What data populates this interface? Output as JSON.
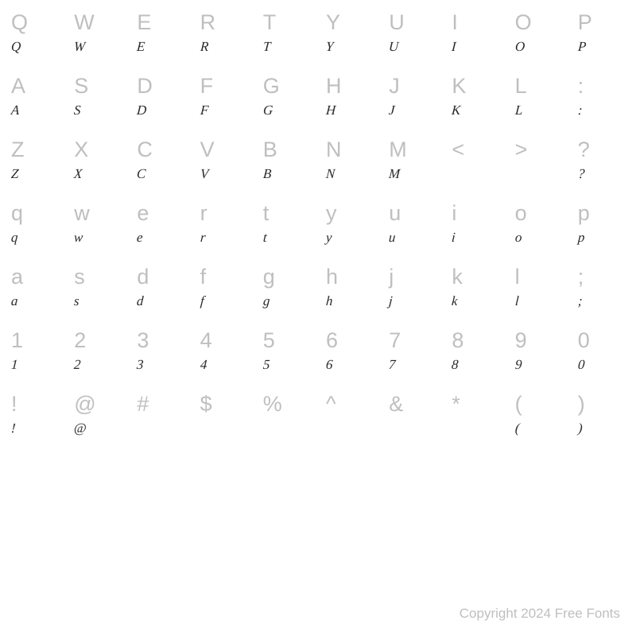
{
  "grid": {
    "rows": [
      {
        "ref": [
          "Q",
          "W",
          "E",
          "R",
          "T",
          "Y",
          "U",
          "I",
          "O",
          "P"
        ],
        "sample": [
          "Q",
          "W",
          "E",
          "R",
          "T",
          "Y",
          "U",
          "I",
          "O",
          "P"
        ]
      },
      {
        "ref": [
          "A",
          "S",
          "D",
          "F",
          "G",
          "H",
          "J",
          "K",
          "L",
          ":"
        ],
        "sample": [
          "A",
          "S",
          "D",
          "F",
          "G",
          "H",
          "J",
          "K",
          "L",
          ":"
        ]
      },
      {
        "ref": [
          "Z",
          "X",
          "C",
          "V",
          "B",
          "N",
          "M",
          "<",
          ">",
          "?"
        ],
        "sample": [
          "Z",
          "X",
          "C",
          "V",
          "B",
          "N",
          "M",
          "",
          "",
          "?"
        ]
      },
      {
        "ref": [
          "q",
          "w",
          "e",
          "r",
          "t",
          "y",
          "u",
          "i",
          "o",
          "p"
        ],
        "sample": [
          "q",
          "w",
          "e",
          "r",
          "t",
          "y",
          "u",
          "i",
          "o",
          "p"
        ]
      },
      {
        "ref": [
          "a",
          "s",
          "d",
          "f",
          "g",
          "h",
          "j",
          "k",
          "l",
          ";"
        ],
        "sample": [
          "a",
          "s",
          "d",
          "f",
          "g",
          "h",
          "j",
          "k",
          "l",
          ";"
        ]
      },
      {
        "ref": [
          "1",
          "2",
          "3",
          "4",
          "5",
          "6",
          "7",
          "8",
          "9",
          "0"
        ],
        "sample": [
          "1",
          "2",
          "3",
          "4",
          "5",
          "6",
          "7",
          "8",
          "9",
          "0"
        ]
      },
      {
        "ref": [
          "!",
          "@",
          "#",
          "$",
          "%",
          "^",
          "&",
          "*",
          "(",
          ")"
        ],
        "sample": [
          "!",
          "@",
          "",
          "",
          "",
          "",
          "",
          "",
          "(",
          ")"
        ]
      }
    ],
    "ref_color": "#bfbfbf",
    "sample_color": "#2a2a2a",
    "ref_fontsize": 27,
    "sample_fontsize": 17,
    "columns": 10,
    "background_color": "#ffffff"
  },
  "footer": {
    "text": "Copyright 2024 Free Fonts",
    "color": "#bfbfbf",
    "fontsize": 17
  }
}
